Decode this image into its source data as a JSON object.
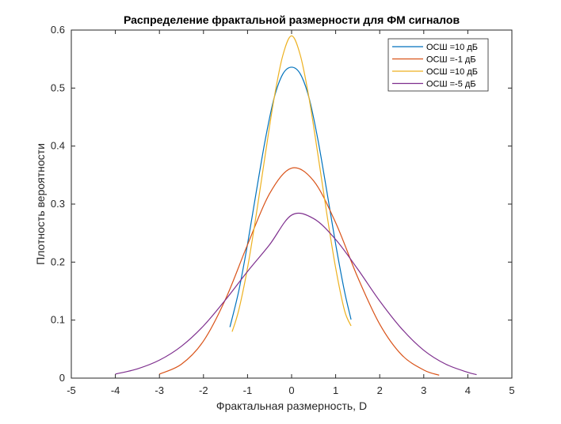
{
  "chart_data": {
    "type": "line",
    "title": "Распределение фрактальной размерности для ФМ сигналов",
    "xlabel": "Фрактальная размерность, D",
    "ylabel": "Плотность вероятности",
    "xlim": [
      -5,
      5
    ],
    "ylim": [
      0,
      0.6
    ],
    "xticks": [
      -5,
      -4,
      -3,
      -2,
      -1,
      0,
      1,
      2,
      3,
      4,
      5
    ],
    "xtick_labels": [
      "-5",
      "-4",
      "-3",
      "-2",
      "-1",
      "0",
      "1",
      "2",
      "3",
      "4",
      "5"
    ],
    "yticks": [
      0,
      0.1,
      0.2,
      0.3,
      0.4,
      0.5,
      0.6
    ],
    "ytick_labels": [
      "0",
      "0.1",
      "0.2",
      "0.3",
      "0.4",
      "0.5",
      "0.6"
    ],
    "grid": false,
    "box": true,
    "legend_position": "top-right",
    "series": [
      {
        "name": "ОСШ =10 дБ",
        "color": "#0072BD",
        "x": [
          -1.4,
          -1.2,
          -1.0,
          -0.8,
          -0.6,
          -0.4,
          -0.2,
          0.0,
          0.2,
          0.4,
          0.6,
          0.8,
          1.0,
          1.2,
          1.35
        ],
        "values": [
          0.088,
          0.15,
          0.231,
          0.322,
          0.41,
          0.482,
          0.524,
          0.536,
          0.524,
          0.482,
          0.41,
          0.322,
          0.231,
          0.15,
          0.101
        ]
      },
      {
        "name": "ОСШ =-1 дБ",
        "color": "#D95319",
        "x": [
          -3.0,
          -2.5,
          -2.0,
          -1.5,
          -1.0,
          -0.5,
          0.0,
          0.5,
          1.0,
          1.5,
          2.0,
          2.5,
          3.0,
          3.35
        ],
        "values": [
          0.007,
          0.024,
          0.064,
          0.136,
          0.23,
          0.318,
          0.362,
          0.34,
          0.268,
          0.174,
          0.093,
          0.04,
          0.014,
          0.005
        ]
      },
      {
        "name": "ОСШ =10 дБ",
        "color": "#EDB120",
        "x": [
          -1.35,
          -1.2,
          -1.0,
          -0.8,
          -0.6,
          -0.4,
          -0.2,
          0.0,
          0.2,
          0.4,
          0.6,
          0.8,
          1.0,
          1.2,
          1.35
        ],
        "values": [
          0.08,
          0.117,
          0.19,
          0.283,
          0.384,
          0.481,
          0.556,
          0.59,
          0.556,
          0.481,
          0.384,
          0.283,
          0.19,
          0.117,
          0.09
        ]
      },
      {
        "name": "ОСШ =-5 дБ",
        "color": "#7E2F8E",
        "x": [
          -4.0,
          -3.5,
          -3.0,
          -2.5,
          -2.0,
          -1.5,
          -1.0,
          -0.5,
          0.0,
          0.5,
          1.0,
          1.5,
          2.0,
          2.5,
          3.0,
          3.5,
          4.0,
          4.2
        ],
        "values": [
          0.007,
          0.016,
          0.031,
          0.055,
          0.09,
          0.135,
          0.184,
          0.23,
          0.281,
          0.275,
          0.239,
          0.188,
          0.133,
          0.085,
          0.048,
          0.024,
          0.01,
          0.006
        ]
      }
    ]
  }
}
